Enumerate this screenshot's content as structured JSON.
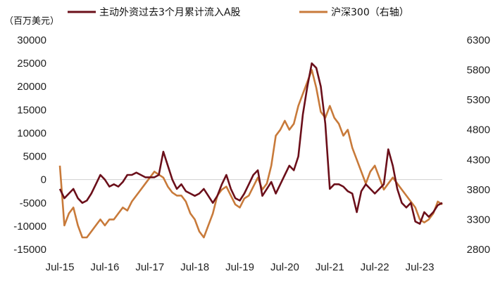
{
  "chart_data": {
    "type": "line",
    "unit_label": "（百万美元）",
    "series": [
      {
        "name": "主动外资过去3个月累计流入A股",
        "axis": "left",
        "color": "#6b0f1a",
        "x": [
          2015.5,
          2015.6,
          2015.7,
          2015.8,
          2015.9,
          2016.0,
          2016.1,
          2016.2,
          2016.3,
          2016.4,
          2016.5,
          2016.6,
          2016.7,
          2016.8,
          2016.9,
          2017.0,
          2017.1,
          2017.2,
          2017.3,
          2017.4,
          2017.5,
          2017.6,
          2017.7,
          2017.8,
          2017.9,
          2018.0,
          2018.1,
          2018.2,
          2018.3,
          2018.4,
          2018.5,
          2018.6,
          2018.7,
          2018.8,
          2018.9,
          2019.0,
          2019.1,
          2019.2,
          2019.3,
          2019.4,
          2019.5,
          2019.6,
          2019.7,
          2019.8,
          2019.9,
          2020.0,
          2020.1,
          2020.2,
          2020.3,
          2020.4,
          2020.5,
          2020.6,
          2020.7,
          2020.8,
          2020.9,
          2021.0,
          2021.1,
          2021.2,
          2021.3,
          2021.4,
          2021.5,
          2021.6,
          2021.7,
          2021.8,
          2021.9,
          2022.0,
          2022.1,
          2022.2,
          2022.3,
          2022.4,
          2022.5,
          2022.6,
          2022.7,
          2022.8,
          2022.9,
          2023.0,
          2023.1,
          2023.2,
          2023.3,
          2023.4,
          2023.5,
          2023.6,
          2023.7,
          2023.8,
          2023.9,
          2024.0
        ],
        "values": [
          -2000,
          -4000,
          -3000,
          -2000,
          -4000,
          -5000,
          -4500,
          -3000,
          -1000,
          1000,
          0,
          -1500,
          -1000,
          -1500,
          -500,
          1000,
          1000,
          1500,
          1000,
          500,
          500,
          500,
          1000,
          6000,
          3000,
          0,
          -2000,
          -1000,
          -2500,
          -3000,
          -3500,
          -3000,
          -2000,
          -3500,
          -5000,
          -3500,
          -1000,
          1000,
          -2000,
          -4000,
          -4500,
          -3000,
          -1000,
          1000,
          2000,
          -3500,
          -2000,
          -500,
          -3000,
          -1000,
          1000,
          3000,
          2000,
          5000,
          14000,
          20000,
          25000,
          24000,
          20000,
          12000,
          -2000,
          -1000,
          -1000,
          -1500,
          -2500,
          -3000,
          -7000,
          -2500,
          -1000,
          -2000,
          -3000,
          -2000,
          -1000,
          6500,
          3000,
          -2000,
          -5000,
          -6000,
          -5000,
          -9000,
          -9500,
          -7000,
          -8000,
          -7000,
          -5500,
          -5000
        ]
      },
      {
        "name": "沪深300（右轴）",
        "axis": "right",
        "color": "#c87a3a",
        "x": [
          2015.5,
          2015.6,
          2015.7,
          2015.8,
          2015.9,
          2016.0,
          2016.1,
          2016.2,
          2016.3,
          2016.4,
          2016.5,
          2016.6,
          2016.7,
          2016.8,
          2016.9,
          2017.0,
          2017.1,
          2017.2,
          2017.3,
          2017.4,
          2017.5,
          2017.6,
          2017.7,
          2017.8,
          2017.9,
          2018.0,
          2018.1,
          2018.2,
          2018.3,
          2018.4,
          2018.5,
          2018.6,
          2018.7,
          2018.8,
          2018.9,
          2019.0,
          2019.1,
          2019.2,
          2019.3,
          2019.4,
          2019.5,
          2019.6,
          2019.7,
          2019.8,
          2019.9,
          2020.0,
          2020.1,
          2020.2,
          2020.3,
          2020.4,
          2020.5,
          2020.6,
          2020.7,
          2020.8,
          2020.9,
          2021.0,
          2021.1,
          2021.2,
          2021.3,
          2021.4,
          2021.5,
          2021.6,
          2021.7,
          2021.8,
          2021.9,
          2022.0,
          2022.1,
          2022.2,
          2022.3,
          2022.4,
          2022.5,
          2022.6,
          2022.7,
          2022.8,
          2022.9,
          2023.0,
          2023.1,
          2023.2,
          2023.3,
          2023.4,
          2023.5,
          2023.6,
          2023.7,
          2023.8,
          2023.9,
          2024.0
        ],
        "values": [
          4200,
          3200,
          3400,
          3500,
          3200,
          3000,
          3000,
          3100,
          3200,
          3300,
          3200,
          3300,
          3300,
          3400,
          3500,
          3450,
          3600,
          3700,
          3800,
          3900,
          4000,
          4100,
          4050,
          4000,
          3850,
          3750,
          3700,
          3700,
          3600,
          3400,
          3300,
          3100,
          3000,
          3200,
          3400,
          3700,
          3800,
          3850,
          3700,
          3550,
          3500,
          3650,
          3700,
          3850,
          4000,
          3800,
          3900,
          4200,
          4700,
          4800,
          4950,
          4800,
          4900,
          5200,
          5400,
          5600,
          5800,
          5500,
          5100,
          5000,
          5200,
          5000,
          4900,
          4700,
          4800,
          4500,
          4300,
          4100,
          3900,
          4100,
          4200,
          4000,
          3800,
          3900,
          4000,
          3900,
          3800,
          3700,
          3600,
          3500,
          3300,
          3250,
          3300,
          3400,
          3600,
          3550
        ]
      }
    ],
    "x_ticks": [
      "Jul-15",
      "Jul-16",
      "Jul-17",
      "Jul-18",
      "Jul-19",
      "Jul-20",
      "Jul-21",
      "Jul-22",
      "Jul-23"
    ],
    "x_tick_values": [
      2015.5,
      2016.5,
      2017.5,
      2018.5,
      2019.5,
      2020.5,
      2021.5,
      2022.5,
      2023.5
    ],
    "xlim": [
      2015.5,
      2024.0
    ],
    "ylim_left": [
      -15000,
      30000
    ],
    "y_ticks_left": [
      -15000,
      -10000,
      -5000,
      0,
      5000,
      10000,
      15000,
      20000,
      25000,
      30000
    ],
    "ylim_right": [
      2800,
      6300
    ],
    "y_ticks_right": [
      2800,
      3300,
      3800,
      4300,
      4800,
      5300,
      5800,
      6300
    ],
    "grid": false,
    "zero_line": true,
    "legend_position": "top"
  }
}
